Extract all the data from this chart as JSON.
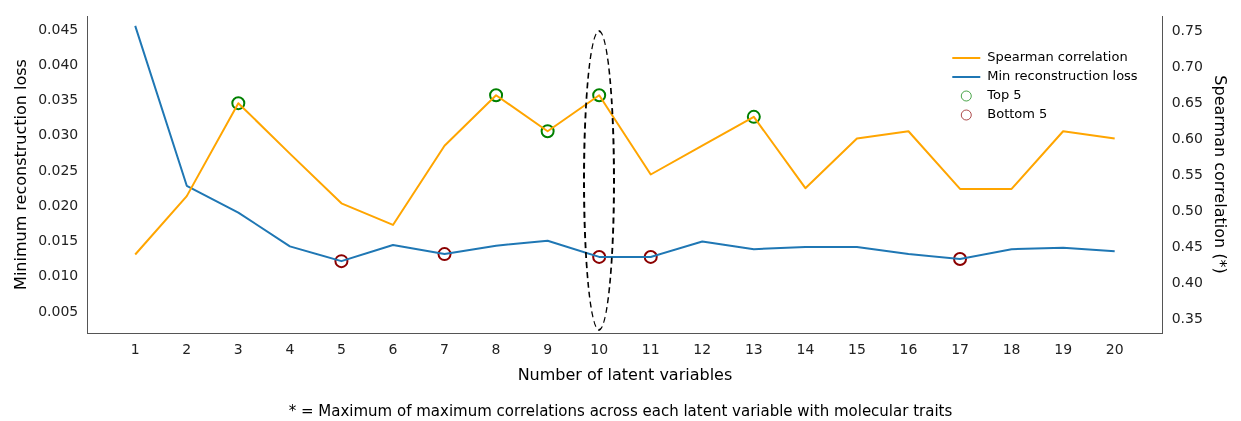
{
  "chart_data": {
    "type": "line",
    "xlabel": "Number of latent variables",
    "ylabel": "Minimum reconstruction loss",
    "y2label": "Spearman correlation (*)",
    "annotations": [
      "* = Maximum of maximum correlations across each latent variable with molecular traits"
    ],
    "x": [
      1,
      2,
      3,
      4,
      5,
      6,
      7,
      8,
      9,
      10,
      11,
      12,
      13,
      14,
      15,
      16,
      17,
      18,
      19,
      20
    ],
    "xlim": [
      0.07,
      20.93
    ],
    "xticks": [
      1,
      2,
      3,
      4,
      5,
      6,
      7,
      8,
      9,
      10,
      11,
      12,
      13,
      14,
      15,
      16,
      17,
      18,
      19,
      20
    ],
    "ylim": [
      0.002,
      0.047
    ],
    "yticks": [
      0.005,
      {
        "value": 0.01,
        "label": "0.010"
      },
      0.015,
      {
        "value": 0.02,
        "label": "0.020"
      },
      0.025,
      {
        "value": 0.03,
        "label": "0.030"
      },
      0.035,
      {
        "value": 0.04,
        "label": "0.040"
      },
      0.045
    ],
    "y2lim": [
      0.331,
      0.771
    ],
    "y2ticks": [
      0.35,
      {
        "value": 0.4,
        "label": "0.40"
      },
      0.45,
      {
        "value": 0.5,
        "label": "0.50"
      },
      0.55,
      {
        "value": 0.6,
        "label": "0.60"
      },
      0.65,
      {
        "value": 0.7,
        "label": "0.70"
      },
      0.75
    ],
    "grid": false,
    "legend": "top right",
    "series": [
      {
        "name": "Spearman correlation",
        "type": "line",
        "axis": "y2",
        "color": "#ffa500",
        "marker": "none",
        "values": [
          0.44,
          0.521,
          0.65,
          0.58,
          0.511,
          0.481,
          0.591,
          0.661,
          0.611,
          0.661,
          0.551,
          0.591,
          0.631,
          0.532,
          0.601,
          0.611,
          0.531,
          0.531,
          0.611,
          0.601
        ]
      },
      {
        "name": "Min reconstruction loss",
        "type": "line",
        "color": "#1f77b4",
        "marker": "none",
        "values": [
          0.0456,
          0.0229,
          0.0191,
          0.0143,
          0.0122,
          0.0145,
          0.0132,
          0.0144,
          0.0151,
          0.0128,
          0.0128,
          0.015,
          0.0139,
          0.0142,
          0.0142,
          0.0132,
          0.0125,
          0.0139,
          0.0141,
          0.0136
        ]
      },
      {
        "name": "Top 5",
        "type": "scatter",
        "axis": "y2",
        "color": "#008000",
        "marker": "circle",
        "x": [
          3,
          8,
          9,
          10,
          13
        ],
        "values": [
          0.65,
          0.661,
          0.611,
          0.661,
          0.631
        ]
      },
      {
        "name": "Bottom 5",
        "type": "scatter",
        "color": "#8b0000",
        "marker": "circle",
        "x": [
          5,
          7,
          10,
          11,
          17
        ],
        "values": [
          0.0122,
          0.0132,
          0.0128,
          0.0128,
          0.0125
        ]
      }
    ]
  }
}
